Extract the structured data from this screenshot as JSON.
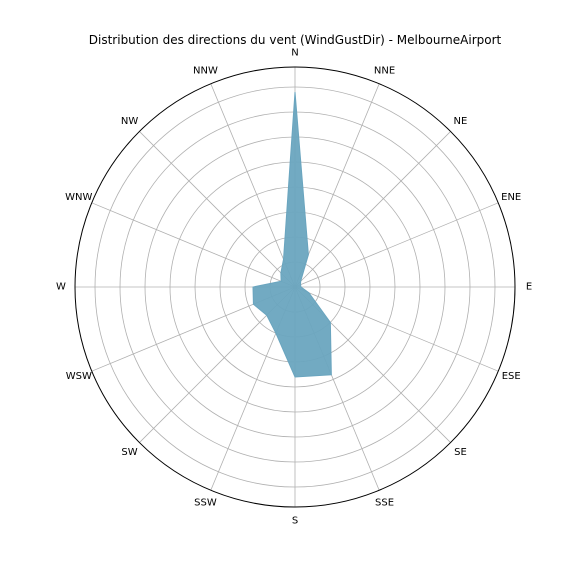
{
  "chart_data": {
    "type": "area",
    "subtype": "polar",
    "title": "Distribution des directions du vent (WindGustDir) - MelbourneAirport",
    "categories": [
      "N",
      "NNE",
      "NE",
      "ENE",
      "E",
      "ESE",
      "SE",
      "SSE",
      "S",
      "SSW",
      "SW",
      "WSW",
      "W",
      "WNW",
      "NW",
      "NNW"
    ],
    "values": [
      195,
      35,
      8,
      6,
      6,
      15,
      50,
      95,
      90,
      50,
      40,
      45,
      42,
      15,
      20,
      30
    ],
    "rlim": [
      0,
      220
    ],
    "rgrid": [
      25,
      50,
      75,
      100,
      125,
      150,
      175,
      200
    ],
    "fill_color": "#6aa5bf",
    "grid": true,
    "legend": "none"
  }
}
